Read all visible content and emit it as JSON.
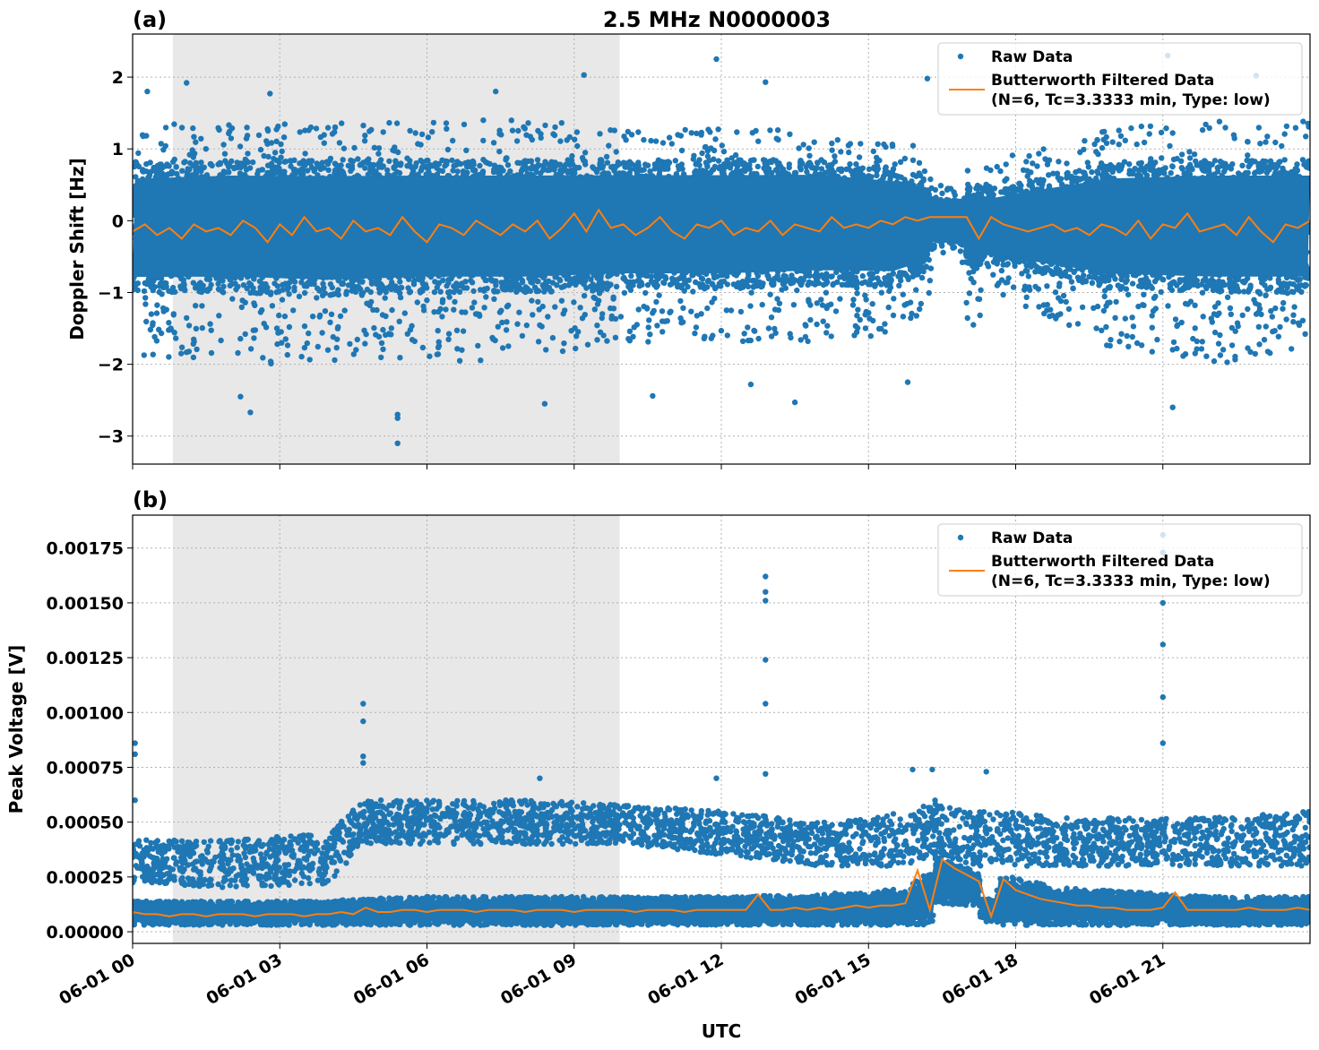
{
  "chart_data": [
    {
      "type": "scatter",
      "panel_label": "(a)",
      "title": "2.5 MHz N0000003",
      "xlabel": "",
      "ylabel": "Doppler Shift [Hz]",
      "xlim_hours": [
        0,
        24
      ],
      "ylim": [
        -3.39,
        2.6
      ],
      "yticks": [
        -3,
        -2,
        -1,
        0,
        1,
        2
      ],
      "ytick_labels": [
        "−3",
        "−2",
        "−1",
        "0",
        "1",
        "2"
      ],
      "grid": true,
      "legend_placement": "upper right",
      "legend": [
        "Raw Data",
        "Butterworth Filtered Data",
        "(N=6, Tc=3.3333 min, Type: low)"
      ],
      "shaded_region_hours": [
        0.82,
        9.93
      ],
      "colors": {
        "raw": "#1f77b4",
        "filtered": "#ff7f0e",
        "shade": "#e8e8e8"
      },
      "raw_data_envelope": {
        "x_hours": [
          0,
          2,
          4,
          6,
          8,
          10,
          12,
          14,
          15.5,
          16.2,
          16.35,
          16.9,
          17.05,
          17.4,
          17.6,
          18.2,
          20,
          22,
          24
        ],
        "core_low": [
          -1.0,
          -1.0,
          -1.05,
          -1.0,
          -1.0,
          -0.95,
          -0.95,
          -0.9,
          -0.9,
          -0.7,
          -0.3,
          -0.3,
          -0.8,
          -0.5,
          -0.6,
          -0.7,
          -0.95,
          -1.0,
          -1.0
        ],
        "core_high": [
          0.8,
          0.85,
          0.85,
          0.85,
          0.85,
          0.85,
          0.85,
          0.85,
          0.75,
          0.6,
          0.3,
          0.3,
          0.55,
          0.45,
          0.45,
          0.55,
          0.8,
          0.85,
          0.85
        ],
        "spread_low": [
          -1.9,
          -2.0,
          -2.0,
          -2.0,
          -1.9,
          -1.7,
          -1.7,
          -1.7,
          -1.6,
          -1.3,
          -0.5,
          -0.5,
          -1.9,
          -1.0,
          -1.0,
          -1.2,
          -1.8,
          -2.0,
          -1.9
        ],
        "spread_high": [
          1.4,
          1.4,
          1.4,
          1.4,
          1.4,
          1.3,
          1.3,
          1.3,
          1.2,
          1.0,
          0.5,
          0.5,
          0.9,
          0.8,
          0.8,
          1.0,
          1.3,
          1.4,
          1.4
        ]
      },
      "raw_outliers": [
        [
          5.4,
          -3.1
        ],
        [
          5.4,
          -2.75
        ],
        [
          5.4,
          -2.7
        ],
        [
          11.9,
          2.25
        ],
        [
          12.9,
          1.93
        ],
        [
          9.2,
          2.03
        ],
        [
          1.1,
          1.92
        ],
        [
          21.2,
          -2.6
        ],
        [
          2.4,
          -2.67
        ],
        [
          13.5,
          -2.53
        ],
        [
          22.9,
          2.02
        ],
        [
          21.1,
          2.3
        ],
        [
          16.2,
          1.98
        ],
        [
          0.3,
          1.8
        ],
        [
          2.8,
          1.77
        ],
        [
          7.4,
          1.8
        ],
        [
          10.6,
          -2.44
        ],
        [
          2.2,
          -2.45
        ],
        [
          8.4,
          -2.55
        ],
        [
          15.8,
          -2.25
        ],
        [
          12.6,
          -2.28
        ]
      ],
      "filtered": {
        "x_start_hours": 0,
        "x_step_hours": 0.25,
        "values": [
          -0.15,
          -0.05,
          -0.2,
          -0.1,
          -0.25,
          -0.05,
          -0.15,
          -0.1,
          -0.2,
          0.0,
          -0.1,
          -0.3,
          -0.05,
          -0.2,
          0.05,
          -0.15,
          -0.1,
          -0.25,
          0.0,
          -0.15,
          -0.1,
          -0.2,
          0.05,
          -0.15,
          -0.3,
          -0.05,
          -0.1,
          -0.2,
          0.0,
          -0.1,
          -0.2,
          -0.05,
          -0.15,
          0.0,
          -0.25,
          -0.1,
          0.1,
          -0.15,
          0.15,
          -0.1,
          -0.05,
          -0.2,
          -0.1,
          0.05,
          -0.15,
          -0.25,
          -0.05,
          -0.1,
          0.0,
          -0.2,
          -0.1,
          -0.15,
          0.0,
          -0.2,
          -0.05,
          -0.1,
          -0.15,
          0.05,
          -0.1,
          -0.05,
          -0.1,
          0.0,
          -0.05,
          0.05,
          0.0,
          0.05,
          0.05,
          0.05,
          0.05,
          -0.25,
          0.05,
          -0.05,
          -0.1,
          -0.15,
          -0.1,
          -0.05,
          -0.15,
          -0.1,
          -0.2,
          -0.05,
          -0.1,
          -0.2,
          0.0,
          -0.25,
          -0.05,
          -0.1,
          0.1,
          -0.15,
          -0.1,
          -0.05,
          -0.2,
          0.05,
          -0.15,
          -0.3,
          -0.05,
          -0.1,
          0.0
        ]
      }
    },
    {
      "type": "scatter",
      "panel_label": "(b)",
      "xlabel": "UTC",
      "ylabel": "Peak Voltage [V]",
      "xlim_hours": [
        0,
        24
      ],
      "ylim": [
        -5.3e-05,
        0.0019
      ],
      "yticks": [
        0,
        0.00025,
        0.0005,
        0.00075,
        0.001,
        0.00125,
        0.0015,
        0.00175
      ],
      "ytick_labels": [
        "0.00000",
        "0.00025",
        "0.00050",
        "0.00075",
        "0.00100",
        "0.00125",
        "0.00150",
        "0.00175"
      ],
      "xticks_hours": [
        0,
        3,
        6,
        9,
        12,
        15,
        18,
        21
      ],
      "xtick_labels": [
        "06-01 00",
        "06-01 03",
        "06-01 06",
        "06-01 09",
        "06-01 12",
        "06-01 15",
        "06-01 18",
        "06-01 21"
      ],
      "grid": true,
      "legend_placement": "upper right",
      "legend": [
        "Raw Data",
        "Butterworth Filtered Data",
        "(N=6, Tc=3.3333 min, Type: low)"
      ],
      "shaded_region_hours": [
        0.82,
        9.93
      ],
      "raw_data_envelope": {
        "x_hours": [
          0,
          2,
          4,
          4.7,
          6,
          8,
          10,
          12,
          14,
          15.8,
          16.3,
          16.35,
          17.25,
          17.3,
          17.6,
          17.65,
          19,
          22,
          24
        ],
        "low_band_low": [
          3e-05,
          3e-05,
          3e-05,
          3e-05,
          3e-05,
          3e-05,
          3e-05,
          3e-05,
          3e-05,
          3e-05,
          3e-05,
          0.00012,
          0.00012,
          4e-05,
          4e-05,
          3e-05,
          3e-05,
          3e-05,
          3e-05
        ],
        "low_band_high": [
          0.00014,
          0.00014,
          0.00014,
          0.00015,
          0.00016,
          0.00016,
          0.00016,
          0.00016,
          0.00017,
          0.0002,
          0.0003,
          0.00035,
          0.00028,
          0.00015,
          0.00015,
          0.00026,
          0.0002,
          0.00016,
          0.00016
        ],
        "upper_cloud_low": [
          0.00022,
          0.0002,
          0.00022,
          0.0004,
          0.0004,
          0.0004,
          0.0004,
          0.00035,
          0.0003,
          0.0003,
          0.00035,
          0.00035,
          0.0003,
          0.0003,
          0.0003,
          0.0003,
          0.0003,
          0.0003,
          0.0003
        ],
        "upper_cloud_high": [
          0.00042,
          0.00042,
          0.00045,
          0.0006,
          0.0006,
          0.0006,
          0.00058,
          0.00055,
          0.0005,
          0.00055,
          0.0006,
          0.0006,
          0.00055,
          0.00055,
          0.00055,
          0.00055,
          0.00052,
          0.00052,
          0.00055
        ]
      },
      "raw_outliers": [
        [
          12.9,
          0.00162
        ],
        [
          12.9,
          0.00155
        ],
        [
          12.9,
          0.00151
        ],
        [
          12.9,
          0.00124
        ],
        [
          12.9,
          0.00104
        ],
        [
          12.9,
          0.00072
        ],
        [
          21.0,
          0.00181
        ],
        [
          21.0,
          0.00173
        ],
        [
          21.0,
          0.0015
        ],
        [
          21.0,
          0.00131
        ],
        [
          21.0,
          0.00107
        ],
        [
          21.0,
          0.00086
        ],
        [
          4.7,
          0.00104
        ],
        [
          4.7,
          0.00096
        ],
        [
          4.7,
          0.0008
        ],
        [
          4.7,
          0.00077
        ],
        [
          0.05,
          0.00086
        ],
        [
          0.05,
          0.00081
        ],
        [
          0.05,
          0.0006
        ],
        [
          15.9,
          0.00074
        ],
        [
          16.3,
          0.00074
        ],
        [
          17.4,
          0.00073
        ],
        [
          11.9,
          0.0007
        ],
        [
          8.3,
          0.0007
        ]
      ],
      "filtered": {
        "x_start_hours": 0,
        "x_step_hours": 0.25,
        "values": [
          9e-05,
          8e-05,
          8e-05,
          7e-05,
          8e-05,
          8e-05,
          7e-05,
          8e-05,
          8e-05,
          8e-05,
          7e-05,
          8e-05,
          8e-05,
          8e-05,
          7e-05,
          8e-05,
          8e-05,
          9e-05,
          8e-05,
          0.00011,
          9e-05,
          9e-05,
          0.0001,
          0.0001,
          9e-05,
          0.0001,
          0.0001,
          0.0001,
          9e-05,
          0.0001,
          0.0001,
          0.0001,
          9e-05,
          0.0001,
          0.0001,
          0.0001,
          9e-05,
          0.0001,
          0.0001,
          0.0001,
          0.0001,
          9e-05,
          0.0001,
          0.0001,
          0.0001,
          9e-05,
          0.0001,
          0.0001,
          0.0001,
          0.0001,
          0.0001,
          0.00017,
          0.0001,
          0.0001,
          0.00011,
          0.0001,
          0.00011,
          0.0001,
          0.00011,
          0.00012,
          0.00011,
          0.00012,
          0.00012,
          0.00013,
          0.00028,
          0.0001,
          0.00033,
          0.00029,
          0.00026,
          0.00023,
          7e-05,
          0.00024,
          0.00019,
          0.00017,
          0.00015,
          0.00014,
          0.00013,
          0.00012,
          0.00012,
          0.00011,
          0.00011,
          0.0001,
          0.0001,
          0.0001,
          0.00011,
          0.00018,
          0.0001,
          0.0001,
          0.0001,
          0.0001,
          0.0001,
          0.00011,
          0.0001,
          0.0001,
          0.0001,
          0.00011,
          0.0001
        ]
      }
    }
  ]
}
